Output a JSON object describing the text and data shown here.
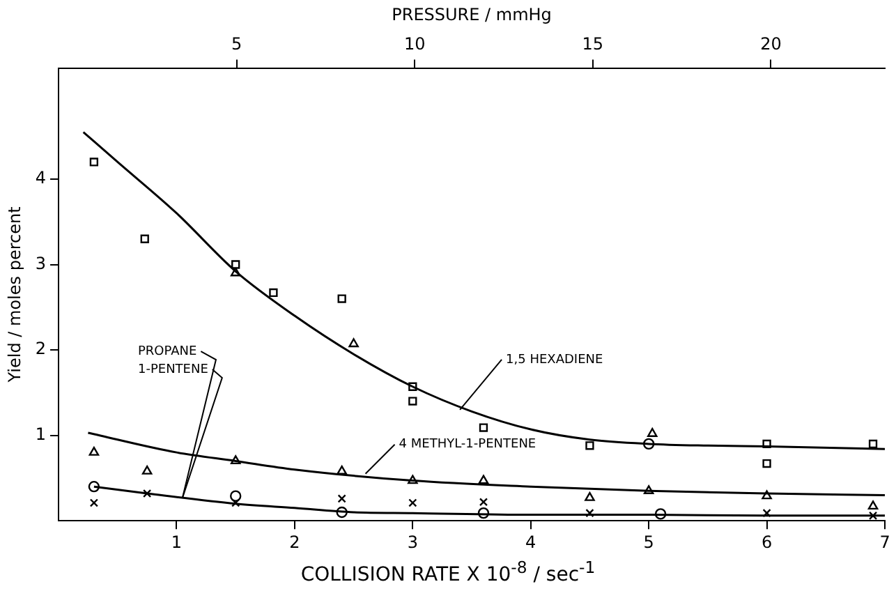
{
  "chart_data": {
    "type": "scatter",
    "xlabel": "COLLISION RATE X 10$^{-8}$ / sec$^{-1}$",
    "ylabel": "Yield / moles percent",
    "x2label": "PRESSURE / mmHg",
    "xlim": [
      0,
      7
    ],
    "xticks": [
      1,
      2,
      3,
      4,
      5,
      6,
      7
    ],
    "ylim": [
      0,
      5.3
    ],
    "yticks": [
      1,
      2,
      3,
      4
    ],
    "x2lim": [
      0,
      23.2
    ],
    "x2ticks": [
      5,
      10,
      15,
      20
    ],
    "grid": false,
    "legend": false,
    "series": [
      {
        "type": "line",
        "color": "#000000",
        "marker": "none",
        "x": [
          0.21,
          0.5,
          1.0,
          1.5,
          2.0,
          2.5,
          3.0,
          3.5,
          4.0,
          4.5,
          5.0,
          5.5,
          6.0,
          7.0
        ],
        "values": [
          4.55,
          4.2,
          3.6,
          2.92,
          2.4,
          1.95,
          1.57,
          1.28,
          1.07,
          0.95,
          0.9,
          0.88,
          0.87,
          0.84
        ]
      },
      {
        "type": "line",
        "color": "#000000",
        "marker": "none",
        "x": [
          0.25,
          1,
          1.5,
          2,
          3,
          4,
          5,
          6,
          7
        ],
        "values": [
          1.03,
          0.8,
          0.7,
          0.6,
          0.47,
          0.4,
          0.35,
          0.32,
          0.3
        ]
      },
      {
        "type": "line",
        "color": "#000000",
        "marker": "none",
        "x": [
          0.3,
          0.75,
          1.5,
          2,
          2.5,
          3,
          4,
          5,
          6,
          7
        ],
        "values": [
          0.4,
          0.32,
          0.2,
          0.15,
          0.1,
          0.09,
          0.07,
          0.07,
          0.06,
          0.06
        ]
      },
      {
        "color": "#000000",
        "marker": "square",
        "x": [
          0.3,
          0.73,
          1.5,
          2.4,
          3.0,
          3.6,
          4.5,
          6.0,
          6.9
        ],
        "values": [
          4.2,
          3.3,
          3.0,
          2.6,
          1.4,
          1.09,
          0.88,
          0.9,
          0.9
        ]
      },
      {
        "color": "#000000",
        "marker": "square",
        "x": [
          1.82,
          3.0,
          6.0
        ],
        "values": [
          2.67,
          1.57,
          0.67
        ]
      },
      {
        "color": "#000000",
        "marker": "triangle",
        "x": [
          1.5,
          2.5,
          5.03
        ],
        "values": [
          2.9,
          2.07,
          1.02
        ]
      },
      {
        "color": "#000000",
        "marker": "triangle",
        "x": [
          0.3,
          0.75,
          1.5,
          2.4,
          3.0,
          3.6,
          4.5,
          5.0,
          6.0,
          6.9
        ],
        "values": [
          0.8,
          0.58,
          0.7,
          0.58,
          0.47,
          0.47,
          0.27,
          0.35,
          0.29,
          0.17
        ]
      },
      {
        "color": "#000000",
        "marker": "circle",
        "x": [
          0.3,
          1.5,
          2.4,
          3.6,
          5.0,
          5.1
        ],
        "values": [
          0.4,
          0.29,
          0.1,
          0.09,
          0.9,
          0.08
        ]
      },
      {
        "color": "#000000",
        "marker": "cross",
        "x": [
          0.3,
          0.75,
          1.5,
          2.4,
          3.0,
          3.6,
          4.5,
          6.0,
          6.9
        ],
        "values": [
          0.21,
          0.32,
          0.21,
          0.26,
          0.21,
          0.22,
          0.09,
          0.09,
          0.06
        ]
      }
    ],
    "annotations": [
      {
        "text": "1,5 HEXADIENE",
        "x": 3.4,
        "y": 1.3
      },
      {
        "text": "4 METHYL-1-PENTENE",
        "x": 2.6,
        "y": 0.55
      },
      {
        "text": "PROPANE",
        "x": 1.05,
        "y": 0.27
      },
      {
        "text": "1-PENTENE",
        "x": 1.05,
        "y": 0.27
      }
    ]
  }
}
